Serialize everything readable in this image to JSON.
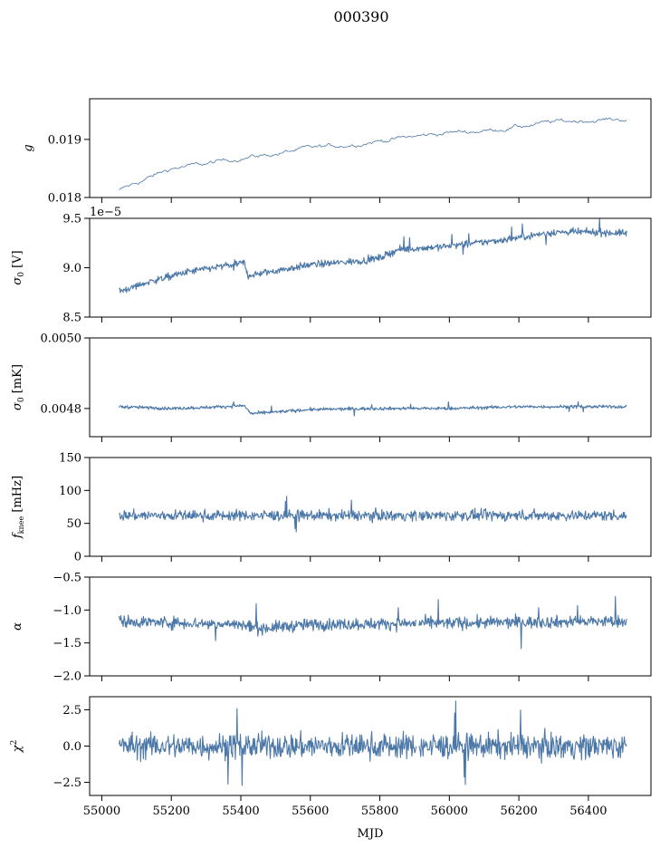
{
  "figure_title": "000390",
  "xlabel": "MJD",
  "x_ticks": [
    "55000",
    "55200",
    "55400",
    "55600",
    "55800",
    "56000",
    "56200",
    "56400"
  ],
  "chart_data": [
    {
      "type": "line",
      "ylabel_symbol": "g",
      "ylabel_unit": "",
      "ylim": [
        0.018,
        0.0197
      ],
      "y_ticks": [
        "0.018",
        "0.019"
      ],
      "offset_text": "",
      "color": "#4c78a8",
      "x_range": [
        55050,
        56510
      ],
      "trend": [
        [
          55050,
          0.01812
        ],
        [
          55120,
          0.0183
        ],
        [
          55200,
          0.0185
        ],
        [
          55300,
          0.01858
        ],
        [
          55400,
          0.01868
        ],
        [
          55500,
          0.01875
        ],
        [
          55600,
          0.01885
        ],
        [
          55700,
          0.0189
        ],
        [
          55800,
          0.01898
        ],
        [
          55900,
          0.01905
        ],
        [
          56000,
          0.01912
        ],
        [
          56100,
          0.01915
        ],
        [
          56200,
          0.01922
        ],
        [
          56300,
          0.0193
        ],
        [
          56400,
          0.01933
        ],
        [
          56510,
          0.01935
        ]
      ],
      "noise": 2.5e-05,
      "gap": null
    },
    {
      "type": "line",
      "ylabel_symbol": "σ",
      "ylabel_unit": "[V]",
      "ylim": [
        8.5,
        9.5
      ],
      "y_ticks": [
        "8.5",
        "9.0",
        "9.5"
      ],
      "offset_text": "1e−5",
      "color": "#4c78a8",
      "x_range": [
        55050,
        56510
      ],
      "trend": [
        [
          55050,
          8.76
        ],
        [
          55150,
          8.87
        ],
        [
          55250,
          8.96
        ],
        [
          55410,
          9.05
        ],
        [
          55420,
          8.92
        ],
        [
          55600,
          9.03
        ],
        [
          55750,
          9.07
        ],
        [
          55800,
          9.1
        ],
        [
          55850,
          9.18
        ],
        [
          56000,
          9.22
        ],
        [
          56150,
          9.28
        ],
        [
          56300,
          9.36
        ],
        [
          56400,
          9.36
        ],
        [
          56510,
          9.35
        ]
      ],
      "noise": 0.035,
      "gap": null
    },
    {
      "type": "line",
      "ylabel_symbol": "σ",
      "ylabel_unit": "[mK]",
      "ylim": [
        0.00472,
        0.005
      ],
      "y_ticks": [
        "0.0048",
        "0.0050"
      ],
      "offset_text": "",
      "color": "#4c78a8",
      "x_range": [
        55050,
        56510
      ],
      "trend": [
        [
          55050,
          0.004805
        ],
        [
          55200,
          0.0048
        ],
        [
          55300,
          0.004803
        ],
        [
          55410,
          0.004808
        ],
        [
          55430,
          0.004785
        ],
        [
          55600,
          0.004797
        ],
        [
          55800,
          0.0048
        ],
        [
          56000,
          0.0048
        ],
        [
          56200,
          0.004805
        ],
        [
          56510,
          0.004805
        ]
      ],
      "noise": 4.5e-06,
      "gap": null
    },
    {
      "type": "line",
      "ylabel_symbol": "f",
      "ylabel_unit": "[mHz]",
      "ylim": [
        0,
        150
      ],
      "y_ticks": [
        "0",
        "50",
        "100",
        "150"
      ],
      "offset_text": "",
      "color": "#4c78a8",
      "x_range": [
        55050,
        56510
      ],
      "trend": [
        [
          55050,
          62
        ],
        [
          56510,
          62
        ]
      ],
      "noise": 8,
      "gap": [
        55905,
        55912
      ]
    },
    {
      "type": "line",
      "ylabel_symbol": "α",
      "ylabel_unit": "",
      "ylim": [
        -2.0,
        -0.5
      ],
      "y_ticks": [
        "−2.0",
        "−1.5",
        "−1.0",
        "−0.5"
      ],
      "offset_text": "",
      "color": "#4c78a8",
      "x_range": [
        55050,
        56510
      ],
      "trend": [
        [
          55050,
          -1.17
        ],
        [
          55400,
          -1.22
        ],
        [
          55450,
          -1.28
        ],
        [
          55600,
          -1.22
        ],
        [
          56510,
          -1.17
        ]
      ],
      "noise": 0.09,
      "gap": [
        55905,
        55912
      ]
    },
    {
      "type": "line",
      "ylabel_symbol": "χ",
      "ylabel_unit": "",
      "ylim": [
        -3.4,
        3.4
      ],
      "y_ticks": [
        "−2.5",
        "0.0",
        "2.5"
      ],
      "offset_text": "",
      "color": "#4c78a8",
      "x_range": [
        55050,
        56510
      ],
      "trend": [
        [
          55050,
          0
        ],
        [
          56510,
          0
        ]
      ],
      "noise": 0.85,
      "gap": [
        55905,
        55912
      ]
    }
  ]
}
